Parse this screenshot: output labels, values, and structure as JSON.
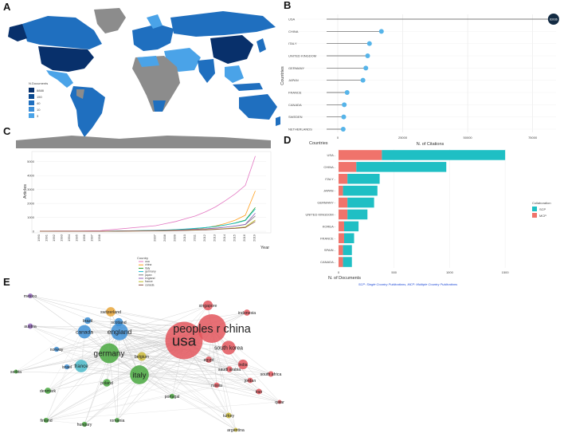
{
  "panels": {
    "a": "A",
    "b": "B",
    "c": "C",
    "d": "D",
    "e": "E"
  },
  "colors": {
    "map_dark": "#08306b",
    "map_mid": "#1f6fbf",
    "map_light": "#4aa3e8",
    "map_gray": "#8c8c8c",
    "scp": "#1fbfc4",
    "mcp": "#f0736b",
    "lollipop": "#56b4e9"
  },
  "chart_data": [
    {
      "type": "choropleth",
      "panel": "A",
      "legend_title": "N.Documents",
      "legend_breaks": [
        "8888",
        "150",
        "40",
        "10",
        "3"
      ]
    },
    {
      "type": "lollipop",
      "panel": "B",
      "xlabel": "N. of Citations",
      "ylabel": "Countries",
      "xticks": [
        0,
        25000,
        50000,
        75000
      ],
      "xlim": [
        0,
        84000
      ],
      "categories": [
        "USA",
        "CHINA",
        "ITALY",
        "UNITED KINGDOM",
        "GERMANY",
        "JAPAN",
        "FRANCE",
        "CANADA",
        "SWEDEN",
        "NETHERLANDS"
      ],
      "values": [
        83036,
        16800,
        12200,
        11500,
        10800,
        9700,
        3600,
        2500,
        2300,
        2100
      ],
      "value_labels": [
        "83036",
        "",
        "",
        "",
        "",
        "",
        "",
        "",
        "",
        ""
      ]
    },
    {
      "type": "line",
      "panel": "C",
      "ylabel": "Articles",
      "xlabel": "Year",
      "yticks": [
        0,
        1000,
        2000,
        3000,
        4000,
        5000
      ],
      "ylim": [
        0,
        5500
      ],
      "years": [
        "1990",
        "1991",
        "1992",
        "1993",
        "1994",
        "1995",
        "1996",
        "1997",
        "1998",
        "2007",
        "2008",
        "2009",
        "2010",
        "2011",
        "2012",
        "2013",
        "2014",
        "2015",
        "2016",
        "2019"
      ],
      "legend_title": "Country",
      "series": [
        {
          "name": "usa",
          "color": "#e377c2",
          "values": [
            10,
            12,
            15,
            18,
            20,
            25,
            30,
            35,
            40,
            400,
            550,
            700,
            900,
            1100,
            1400,
            1750,
            2200,
            2700,
            3300,
            5400
          ]
        },
        {
          "name": "china",
          "color": "#ff9f1c",
          "values": [
            0,
            0,
            0,
            0,
            0,
            0,
            0,
            0,
            0,
            30,
            50,
            80,
            120,
            180,
            260,
            380,
            560,
            800,
            1150,
            2900
          ]
        },
        {
          "name": "italy",
          "color": "#2ca02c",
          "values": [
            0,
            0,
            0,
            0,
            0,
            0,
            0,
            0,
            0,
            60,
            80,
            110,
            150,
            200,
            260,
            340,
            450,
            600,
            800,
            1700
          ]
        },
        {
          "name": "germany",
          "color": "#17becf",
          "values": [
            0,
            0,
            0,
            0,
            0,
            0,
            0,
            0,
            0,
            70,
            90,
            120,
            160,
            210,
            270,
            350,
            460,
            580,
            760,
            1600
          ]
        },
        {
          "name": "japan",
          "color": "#7f7f7f",
          "values": [
            0,
            0,
            0,
            0,
            0,
            0,
            0,
            0,
            0,
            50,
            70,
            90,
            110,
            140,
            180,
            230,
            290,
            370,
            480,
            1100
          ]
        },
        {
          "name": "england",
          "color": "#9467bd",
          "values": [
            0,
            0,
            0,
            0,
            0,
            0,
            0,
            0,
            0,
            40,
            55,
            70,
            95,
            130,
            170,
            220,
            290,
            380,
            500,
            1300
          ]
        },
        {
          "name": "france",
          "color": "#bcbd22",
          "values": [
            0,
            0,
            0,
            0,
            0,
            0,
            0,
            0,
            0,
            30,
            40,
            55,
            70,
            90,
            120,
            150,
            190,
            240,
            310,
            800
          ]
        },
        {
          "name": "canada",
          "color": "#8c564b",
          "values": [
            0,
            0,
            0,
            0,
            0,
            0,
            0,
            0,
            0,
            25,
            35,
            45,
            60,
            80,
            100,
            130,
            170,
            210,
            270,
            700
          ]
        }
      ]
    },
    {
      "type": "bar",
      "panel": "D",
      "stacked": true,
      "horizontal": true,
      "ylabel": "Countries",
      "xlabel": "N. of Documents",
      "xticks": [
        0,
        500,
        1000,
        1500
      ],
      "xlim": [
        0,
        1700
      ],
      "legend_title": "Collaboration",
      "categories": [
        "USA",
        "CHINA",
        "ITALY",
        "JAPAN",
        "GERMANY",
        "UNITED KINGDOM",
        "KOREA",
        "FRANCE",
        "SPAIN",
        "CANADA"
      ],
      "series": [
        {
          "name": "SCP",
          "color": "#1fbfc4",
          "values": [
            1110,
            810,
            290,
            310,
            240,
            180,
            130,
            90,
            80,
            80
          ]
        },
        {
          "name": "MCP",
          "color": "#f0736b",
          "values": [
            390,
            160,
            80,
            40,
            80,
            80,
            50,
            50,
            40,
            40
          ]
        }
      ],
      "caption": "SCP: Single Country Publications, MCP: Multiple Country Publications"
    }
  ],
  "network": {
    "nodes": [
      {
        "label": "usa",
        "color": "#e3565d",
        "size": 2200
      },
      {
        "label": "peoples r china",
        "color": "#e3565d",
        "size": 1300
      },
      {
        "label": "germany",
        "color": "#49a83f",
        "size": 620
      },
      {
        "label": "italy",
        "color": "#49a83f",
        "size": 560
      },
      {
        "label": "england",
        "color": "#3d8fd6",
        "size": 460
      },
      {
        "label": "south korea",
        "color": "#e3565d",
        "size": 300
      },
      {
        "label": "canada",
        "color": "#3d8fd6",
        "size": 280
      },
      {
        "label": "france",
        "color": "#4ab8c8",
        "size": 250
      },
      {
        "label": "singapore",
        "color": "#e3565d",
        "size": 150
      },
      {
        "label": "india",
        "color": "#e3565d",
        "size": 150
      },
      {
        "label": "switzerland",
        "color": "#e8a63a",
        "size": 140
      },
      {
        "label": "belgium",
        "color": "#c9b93a",
        "size": 120
      },
      {
        "label": "scotland",
        "color": "#3d8fd6",
        "size": 110
      },
      {
        "label": "poland",
        "color": "#49a83f",
        "size": 90
      },
      {
        "label": "brazil",
        "color": "#3d8fd6",
        "size": 70
      },
      {
        "label": "indonesia",
        "color": "#e3565d",
        "size": 60
      },
      {
        "label": "egypt",
        "color": "#e3565d",
        "size": 60
      },
      {
        "label": "saudi arabia",
        "color": "#e3565d",
        "size": 55
      },
      {
        "label": "south africa",
        "color": "#e3565d",
        "size": 50
      },
      {
        "label": "jordan",
        "color": "#e3565d",
        "size": 45
      },
      {
        "label": "iran",
        "color": "#e3565d",
        "size": 50
      },
      {
        "label": "russia",
        "color": "#e3565d",
        "size": 45
      },
      {
        "label": "denmark",
        "color": "#49a83f",
        "size": 60
      },
      {
        "label": "norway",
        "color": "#3d8fd6",
        "size": 40
      },
      {
        "label": "israel",
        "color": "#3d8fd6",
        "size": 40
      },
      {
        "label": "mexico",
        "color": "#9467bd",
        "size": 35
      },
      {
        "label": "austria",
        "color": "#9467bd",
        "size": 45
      },
      {
        "label": "serbia",
        "color": "#49a83f",
        "size": 25
      },
      {
        "label": "finland",
        "color": "#49a83f",
        "size": 40
      },
      {
        "label": "hungary",
        "color": "#49a83f",
        "size": 40
      },
      {
        "label": "romania",
        "color": "#49a83f",
        "size": 35
      },
      {
        "label": "portugal",
        "color": "#49a83f",
        "size": 40
      },
      {
        "label": "turkey",
        "color": "#c9b93a",
        "size": 50
      },
      {
        "label": "argentina",
        "color": "#c9b93a",
        "size": 25
      },
      {
        "label": "qatar",
        "color": "#e3565d",
        "size": 25
      }
    ]
  }
}
